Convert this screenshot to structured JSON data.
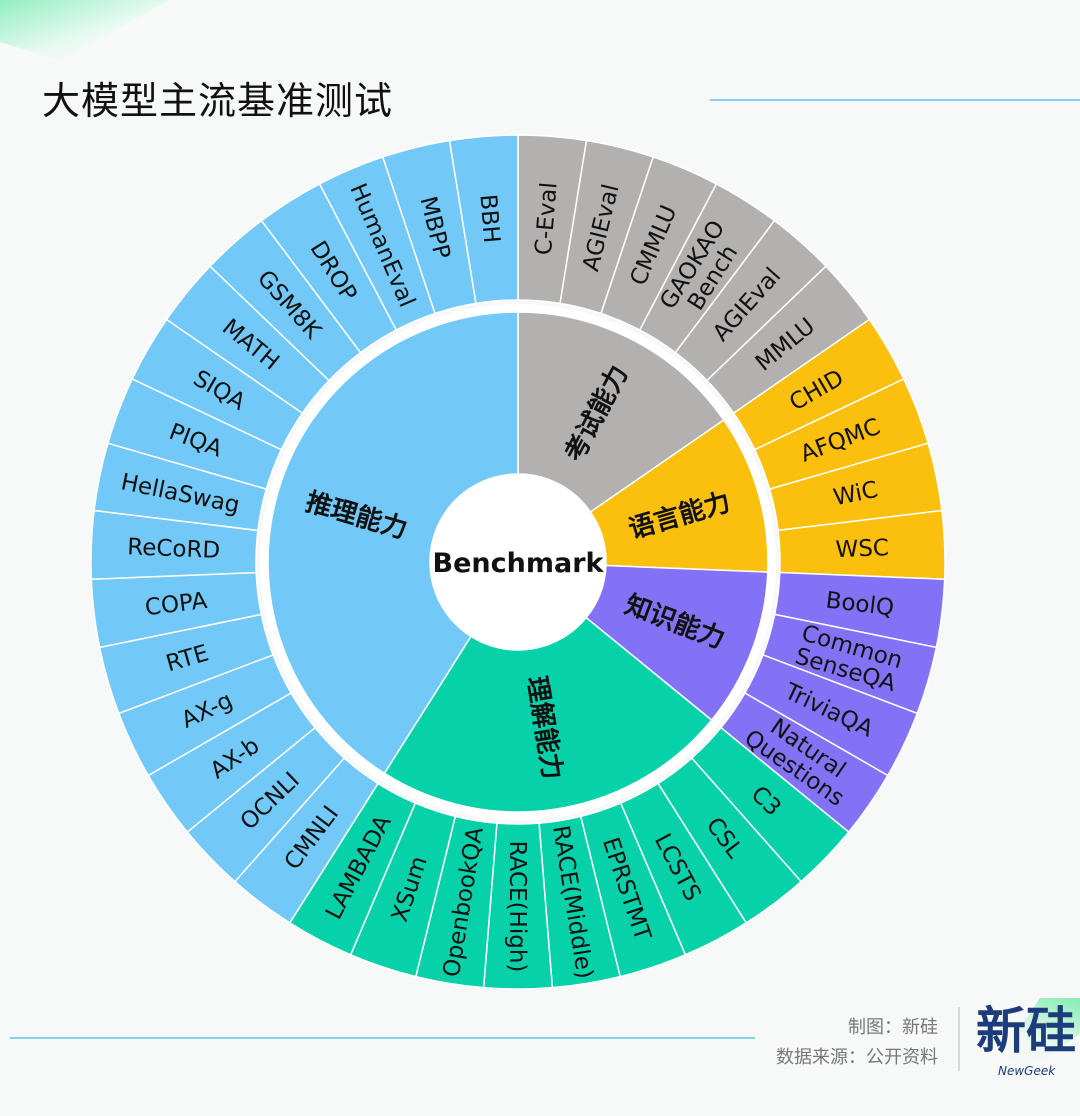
{
  "page": {
    "title": "大模型主流基准测试",
    "credit_author": "制图：新硅",
    "credit_source": "数据来源：公开资料",
    "logo_text": "新硅",
    "logo_sub": "NewGeek"
  },
  "colors": {
    "background": "#f7f8f8",
    "accent_line": "#7fd3ea",
    "center": "#ffffff"
  },
  "chart_data": {
    "type": "sunburst",
    "center_label": "Benchmark",
    "categories": [
      {
        "name": "考试能力",
        "color": "#b3b1b0",
        "children": [
          "C-Eval",
          "AGIEval",
          "CMMLU",
          "GAOKAO\nBench",
          "AGIEval",
          "MMLU"
        ]
      },
      {
        "name": "语言能力",
        "color": "#fbbf0d",
        "children": [
          "CHID",
          "AFQMC",
          "WiC",
          "WSC"
        ]
      },
      {
        "name": "知识能力",
        "color": "#8472f6",
        "children": [
          "BoolQ",
          "Common\nSenseQA",
          "TriviaQA",
          "Natural\nQuestions"
        ]
      },
      {
        "name": "理解能力",
        "color": "#07d1a9",
        "children": [
          "C3",
          "CSL",
          "LCSTS",
          "EPRSTMT",
          "RACE(Middle)",
          "RACE(High)",
          "OpenbookQA",
          "XSum",
          "LAMBADA"
        ]
      },
      {
        "name": "推理能力",
        "color": "#72c8f6",
        "children": [
          "CMNLI",
          "OCNLI",
          "AX-b",
          "AX-g",
          "RTE",
          "COPA",
          "ReCoRD",
          "HellaSwag",
          "PIQA",
          "SIQA",
          "MATH",
          "GSM8K",
          "DROP",
          "HumanEval",
          "MBPP",
          "BBH"
        ]
      }
    ]
  }
}
